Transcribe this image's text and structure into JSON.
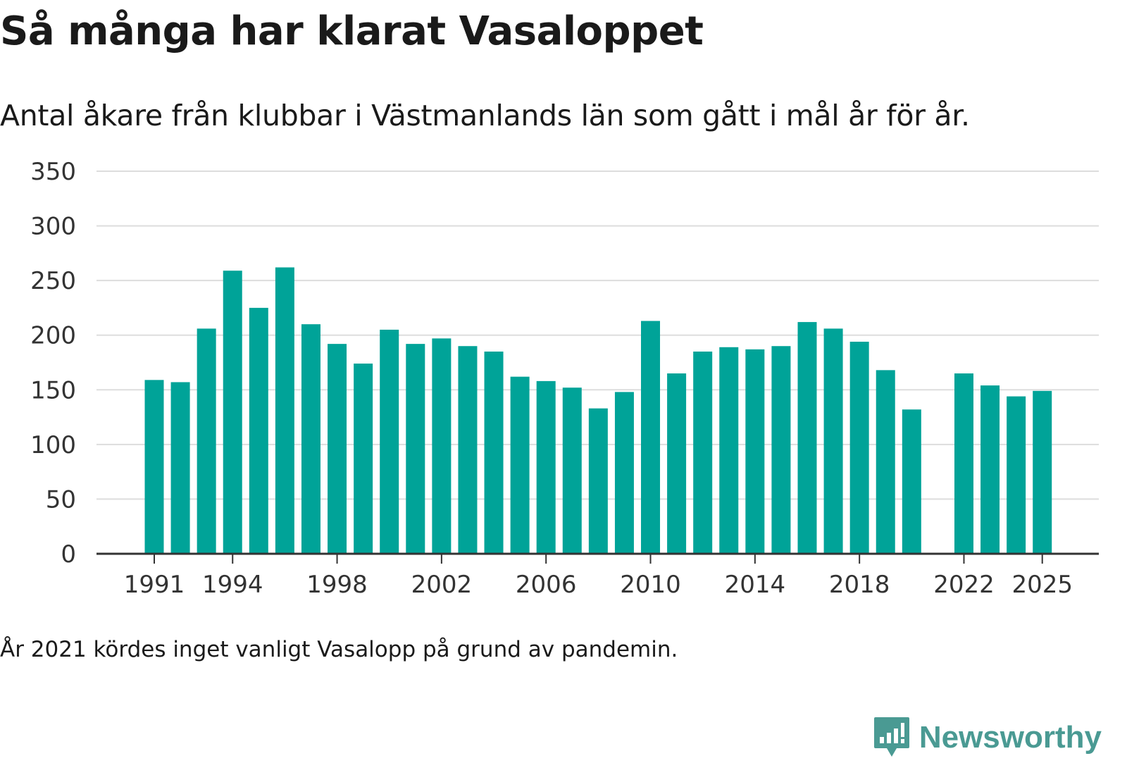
{
  "title": "Så många har klarat Vasaloppet",
  "subtitle": "Antal åkare från klubbar i Västmanlands län som gått i mål år för år.",
  "note": "År 2021 kördes inget vanligt Vasalopp på grund av pandemin.",
  "brand": {
    "name": "Newsworthy",
    "icon": "newsworthy-logo-icon"
  },
  "colors": {
    "bar": "#00a398",
    "grid": "#dddddd",
    "axis": "#333333",
    "brand": "#4a9a93"
  },
  "chart_data": {
    "type": "bar",
    "title": "Så många har klarat Vasaloppet",
    "xlabel": "",
    "ylabel": "",
    "ylim": [
      0,
      350
    ],
    "yticks": [
      0,
      50,
      100,
      150,
      200,
      250,
      300,
      350
    ],
    "xticks": [
      1991,
      1994,
      1998,
      2002,
      2006,
      2010,
      2014,
      2018,
      2022,
      2025
    ],
    "categories": [
      1991,
      1992,
      1993,
      1994,
      1995,
      1996,
      1997,
      1998,
      1999,
      2000,
      2001,
      2002,
      2003,
      2004,
      2005,
      2006,
      2007,
      2008,
      2009,
      2010,
      2011,
      2012,
      2013,
      2014,
      2015,
      2016,
      2017,
      2018,
      2019,
      2020,
      2021,
      2022,
      2023,
      2024,
      2025
    ],
    "values": [
      159,
      157,
      206,
      259,
      225,
      262,
      210,
      192,
      174,
      205,
      192,
      197,
      190,
      185,
      162,
      158,
      152,
      133,
      148,
      213,
      165,
      185,
      189,
      187,
      190,
      212,
      206,
      194,
      168,
      132,
      null,
      165,
      154,
      144,
      149
    ],
    "grid": true,
    "legend": "none"
  }
}
